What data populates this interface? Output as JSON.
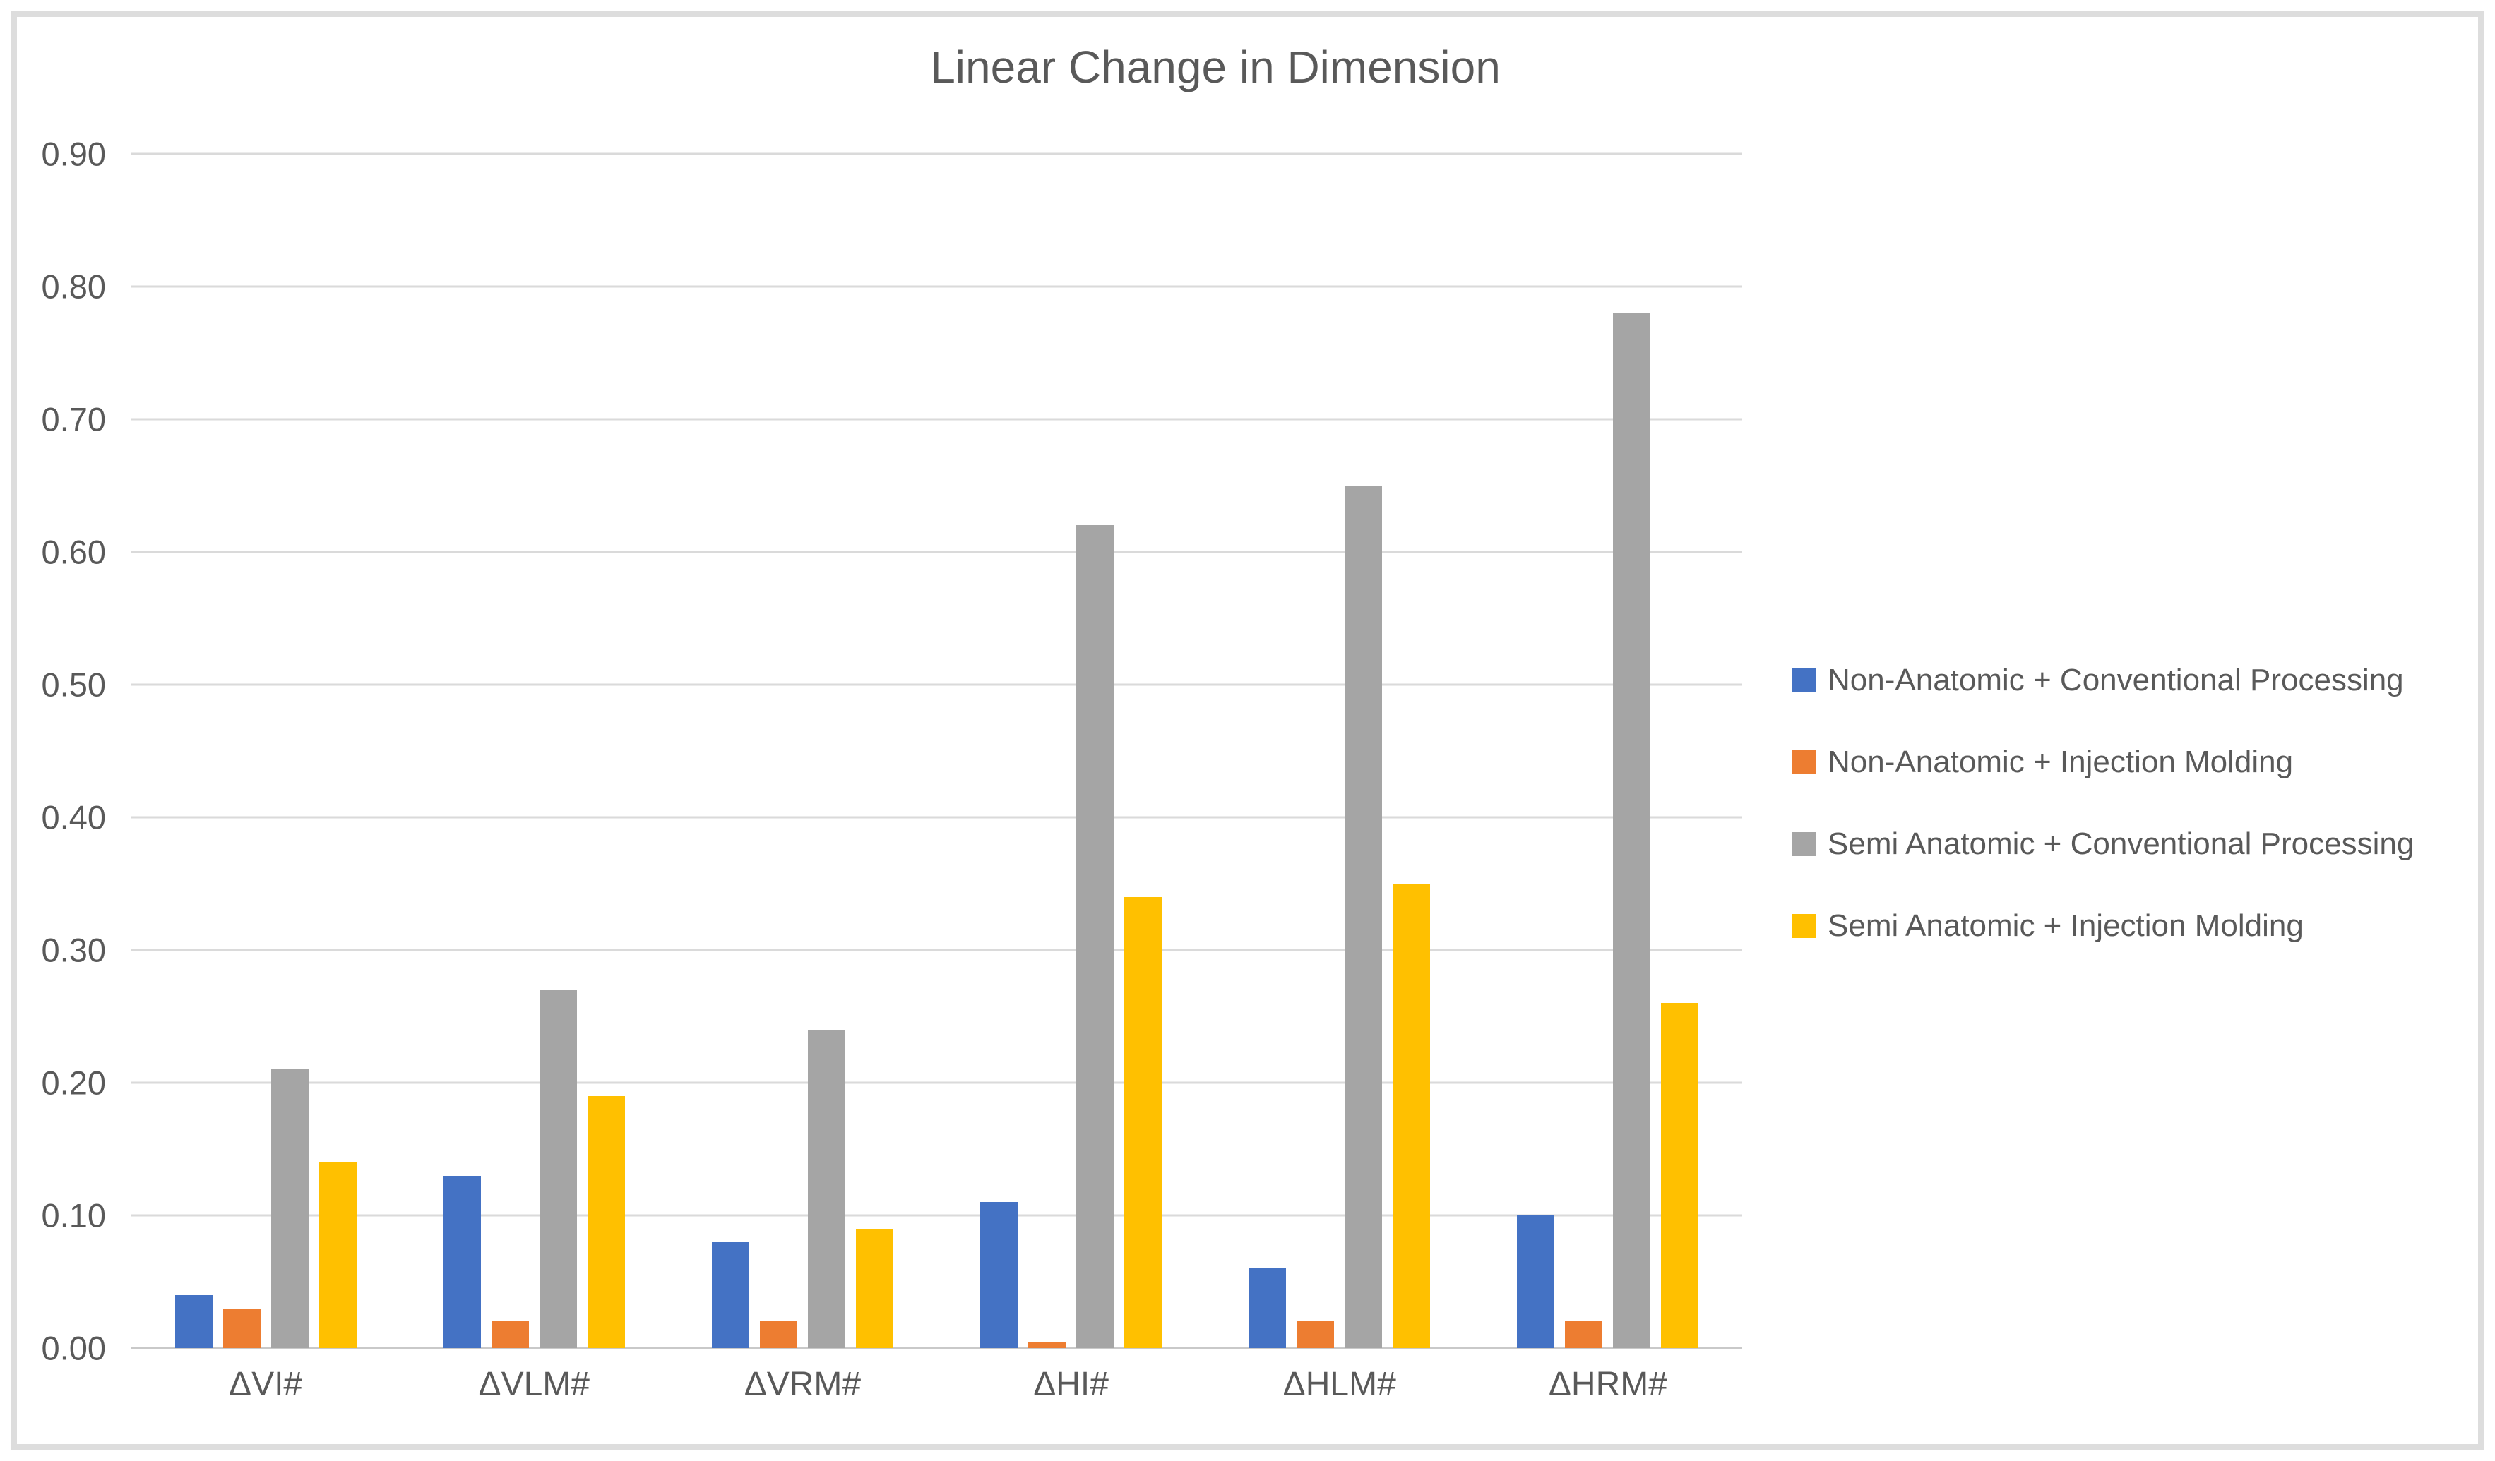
{
  "chart_data": {
    "type": "bar",
    "title": "Linear Change in Dimension",
    "categories": [
      "ΔVI#",
      "ΔVLM#",
      "ΔVRM#",
      "ΔHI#",
      "ΔHLM#",
      "ΔHRM#"
    ],
    "series": [
      {
        "name": "Non-Anatomic + Conventional Processing",
        "color": "#4472C4",
        "values": [
          0.04,
          0.13,
          0.08,
          0.11,
          0.06,
          0.1
        ]
      },
      {
        "name": "Non-Anatomic + Injection Molding",
        "color": "#ED7D31",
        "values": [
          0.03,
          0.02,
          0.02,
          0.005,
          0.02,
          0.02
        ]
      },
      {
        "name": "Semi Anatomic + Conventional Processing",
        "color": "#A5A5A5",
        "values": [
          0.21,
          0.27,
          0.24,
          0.62,
          0.65,
          0.78
        ]
      },
      {
        "name": "Semi Anatomic + Injection Molding",
        "color": "#FFC000",
        "values": [
          0.14,
          0.19,
          0.09,
          0.34,
          0.35,
          0.26
        ]
      }
    ],
    "xlabel": "",
    "ylabel": "",
    "ylim": [
      0.0,
      0.9
    ],
    "ytick_step": 0.1,
    "ytick_labels": [
      "0.00",
      "0.10",
      "0.20",
      "0.30",
      "0.40",
      "0.50",
      "0.60",
      "0.70",
      "0.80",
      "0.90"
    ],
    "grid": true,
    "legend_position": "right",
    "colors": {
      "gridline": "#DADADA",
      "axis_line": "#C9C9C9",
      "text": "#595959",
      "frame_border": "#DDDDDD",
      "background": "#FFFFFF"
    }
  }
}
